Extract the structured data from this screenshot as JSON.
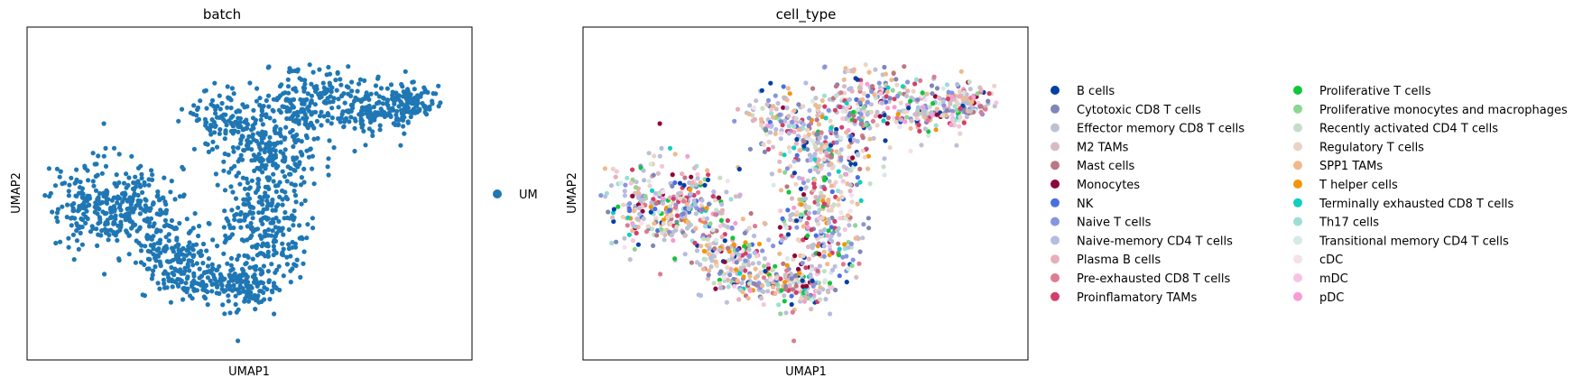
{
  "chart_data": [
    {
      "type": "scatter",
      "title": "batch",
      "xlabel": "UMAP1",
      "ylabel": "UMAP2",
      "grid": false,
      "ticks": false,
      "legend_placement": "right",
      "series": [
        {
          "name": "UM",
          "color": "#1f77b4"
        }
      ]
    },
    {
      "type": "scatter",
      "title": "cell_type",
      "xlabel": "UMAP1",
      "ylabel": "UMAP2",
      "grid": false,
      "ticks": false,
      "legend_placement": "right, two columns",
      "series": [
        {
          "name": "B cells",
          "color": "#023fa5"
        },
        {
          "name": "Cytotoxic CD8 T cells",
          "color": "#7d87b9"
        },
        {
          "name": "Effector memory CD8 T cells",
          "color": "#bec1d4"
        },
        {
          "name": "M2 TAMs",
          "color": "#d6bcc0"
        },
        {
          "name": "Mast cells",
          "color": "#bb7784"
        },
        {
          "name": "Monocytes",
          "color": "#8e063b"
        },
        {
          "name": "NK",
          "color": "#4a6fe3"
        },
        {
          "name": "Naive T cells",
          "color": "#8595e1"
        },
        {
          "name": "Naive-memory CD4 T cells",
          "color": "#b5bbe3"
        },
        {
          "name": "Plasma B cells",
          "color": "#e6afb9"
        },
        {
          "name": "Pre-exhausted CD8 T cells",
          "color": "#e07b91"
        },
        {
          "name": "Proinflamatory TAMs",
          "color": "#d33f6a"
        },
        {
          "name": "Proliferative T cells",
          "color": "#11c638"
        },
        {
          "name": "Proliferative monocytes and macrophages",
          "color": "#8dd593"
        },
        {
          "name": "Recently activated CD4 T cells",
          "color": "#c6dec7"
        },
        {
          "name": "Regulatory T cells",
          "color": "#ead3c6"
        },
        {
          "name": "SPP1 TAMs",
          "color": "#f0b98d"
        },
        {
          "name": "T helper cells",
          "color": "#ef9708"
        },
        {
          "name": "Terminally exhausted CD8 T cells",
          "color": "#0fcfc0"
        },
        {
          "name": "Th17 cells",
          "color": "#9cded6"
        },
        {
          "name": "Transitional memory CD4 T cells",
          "color": "#d5eae7"
        },
        {
          "name": "cDC",
          "color": "#f3e1eb"
        },
        {
          "name": "mDC",
          "color": "#f6c4e1"
        },
        {
          "name": "pDC",
          "color": "#f79cd4"
        }
      ]
    }
  ]
}
